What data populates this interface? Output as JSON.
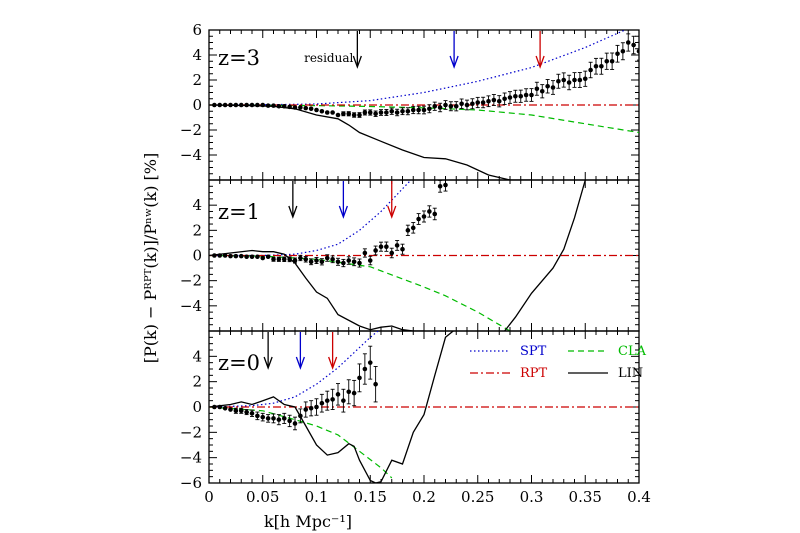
{
  "chart_data": [
    {
      "type": "line",
      "panel_label": "z=3",
      "xlim": [
        0,
        0.4
      ],
      "ylim": [
        -6,
        6
      ],
      "x_ticks": [
        0,
        0.05,
        0.1,
        0.15,
        0.2,
        0.25,
        0.3,
        0.35,
        0.4
      ],
      "y_ticks": [
        -4,
        -2,
        0,
        2,
        4,
        6
      ],
      "y_tick_labels": [
        "−4",
        "−2",
        "0",
        "2",
        "4",
        "6"
      ],
      "arrows": [
        {
          "x": 0.138,
          "color": "#000000",
          "label": "residual"
        },
        {
          "x": 0.228,
          "color": "#0000cc",
          "label": ""
        },
        {
          "x": 0.308,
          "color": "#cc0000",
          "label": ""
        }
      ],
      "series": [
        {
          "key": "SPT",
          "style": "dotted",
          "color": "#0000cc",
          "x": [
            0.0,
            0.05,
            0.1,
            0.15,
            0.2,
            0.25,
            0.3,
            0.35,
            0.4
          ],
          "y": [
            0.0,
            0.02,
            0.08,
            0.35,
            1.0,
            1.9,
            3.0,
            4.6,
            6.5
          ]
        },
        {
          "key": "CLA",
          "style": "dashed",
          "color": "#00bb00",
          "x": [
            0.0,
            0.1,
            0.15,
            0.2,
            0.25,
            0.3,
            0.35,
            0.4
          ],
          "y": [
            0.0,
            -0.05,
            -0.12,
            -0.22,
            -0.4,
            -0.8,
            -1.5,
            -2.2
          ]
        },
        {
          "key": "RPT",
          "style": "dashdot",
          "color": "#cc0000",
          "x": [
            0.0,
            0.4
          ],
          "y": [
            0.0,
            0.0
          ]
        },
        {
          "key": "LIN",
          "style": "solid",
          "color": "#000000",
          "x": [
            0.0,
            0.04,
            0.06,
            0.08,
            0.1,
            0.12,
            0.13,
            0.14,
            0.16,
            0.18,
            0.2,
            0.22,
            0.24,
            0.26,
            0.28,
            0.3
          ],
          "y": [
            0.0,
            -0.05,
            -0.1,
            -0.3,
            -0.8,
            -1.1,
            -1.6,
            -2.2,
            -2.9,
            -3.6,
            -4.2,
            -4.3,
            -4.8,
            -5.6,
            -6.0,
            -6.0
          ]
        },
        {
          "key": "data",
          "style": "points",
          "color": "#000000",
          "x": [
            0.005,
            0.01,
            0.015,
            0.02,
            0.025,
            0.03,
            0.035,
            0.04,
            0.045,
            0.05,
            0.055,
            0.06,
            0.065,
            0.07,
            0.075,
            0.08,
            0.085,
            0.09,
            0.095,
            0.1,
            0.105,
            0.11,
            0.115,
            0.12,
            0.125,
            0.13,
            0.135,
            0.14,
            0.145,
            0.15,
            0.155,
            0.16,
            0.165,
            0.17,
            0.175,
            0.18,
            0.185,
            0.19,
            0.195,
            0.2,
            0.205,
            0.21,
            0.215,
            0.22,
            0.225,
            0.23,
            0.235,
            0.24,
            0.245,
            0.25,
            0.255,
            0.26,
            0.265,
            0.27,
            0.275,
            0.28,
            0.285,
            0.29,
            0.295,
            0.3,
            0.305,
            0.31,
            0.315,
            0.32,
            0.325,
            0.33,
            0.335,
            0.34,
            0.345,
            0.35,
            0.355,
            0.36,
            0.365,
            0.37,
            0.375,
            0.38,
            0.385,
            0.39,
            0.395,
            0.4
          ],
          "y": [
            0.0,
            0.0,
            0.0,
            0.0,
            0.0,
            0.0,
            0.0,
            0.0,
            0.0,
            0.0,
            -0.05,
            -0.05,
            -0.1,
            -0.1,
            -0.15,
            -0.2,
            -0.2,
            -0.25,
            -0.3,
            -0.4,
            -0.5,
            -0.6,
            -0.6,
            -0.8,
            -0.7,
            -0.7,
            -0.8,
            -0.8,
            -0.6,
            -0.6,
            -0.7,
            -0.6,
            -0.6,
            -0.5,
            -0.6,
            -0.5,
            -0.5,
            -0.4,
            -0.4,
            -0.4,
            -0.3,
            -0.1,
            -0.2,
            0.0,
            -0.1,
            -0.1,
            0.1,
            0.0,
            0.1,
            0.2,
            0.2,
            0.3,
            0.4,
            0.3,
            0.5,
            0.6,
            0.7,
            0.7,
            0.8,
            0.8,
            1.3,
            1.1,
            1.5,
            1.4,
            1.9,
            2.0,
            1.8,
            2.0,
            2.0,
            2.1,
            2.8,
            3.1,
            3.1,
            3.5,
            3.5,
            4.1,
            4.3,
            5.0,
            4.8,
            4.3
          ],
          "yerr": [
            0.02,
            0.02,
            0.02,
            0.02,
            0.03,
            0.03,
            0.03,
            0.04,
            0.04,
            0.05,
            0.05,
            0.06,
            0.06,
            0.07,
            0.08,
            0.08,
            0.09,
            0.1,
            0.1,
            0.11,
            0.12,
            0.13,
            0.14,
            0.15,
            0.16,
            0.17,
            0.18,
            0.19,
            0.2,
            0.21,
            0.22,
            0.23,
            0.24,
            0.25,
            0.26,
            0.27,
            0.28,
            0.29,
            0.3,
            0.31,
            0.32,
            0.33,
            0.34,
            0.35,
            0.36,
            0.37,
            0.38,
            0.39,
            0.4,
            0.41,
            0.42,
            0.43,
            0.44,
            0.45,
            0.46,
            0.47,
            0.48,
            0.49,
            0.5,
            0.51,
            0.52,
            0.53,
            0.54,
            0.55,
            0.56,
            0.57,
            0.58,
            0.59,
            0.6,
            0.61,
            0.62,
            0.63,
            0.64,
            0.65,
            0.66,
            0.67,
            0.68,
            0.69,
            0.7,
            0.71
          ]
        }
      ]
    },
    {
      "type": "line",
      "panel_label": "z=1",
      "xlim": [
        0,
        0.4
      ],
      "ylim": [
        -6,
        6
      ],
      "x_ticks": [
        0,
        0.05,
        0.1,
        0.15,
        0.2,
        0.25,
        0.3,
        0.35,
        0.4
      ],
      "y_ticks": [
        -4,
        -2,
        0,
        2,
        4
      ],
      "y_tick_labels": [
        "−4",
        "−2",
        "0",
        "2",
        "4"
      ],
      "arrows": [
        {
          "x": 0.078,
          "color": "#000000",
          "label": ""
        },
        {
          "x": 0.125,
          "color": "#0000cc",
          "label": ""
        },
        {
          "x": 0.17,
          "color": "#cc0000",
          "label": ""
        }
      ],
      "series": [
        {
          "key": "SPT",
          "style": "dotted",
          "color": "#0000cc",
          "x": [
            0.0,
            0.05,
            0.08,
            0.1,
            0.12,
            0.14,
            0.16,
            0.18,
            0.19
          ],
          "y": [
            0.0,
            0.0,
            0.1,
            0.4,
            0.9,
            2.0,
            3.5,
            5.3,
            6.2
          ]
        },
        {
          "key": "CLA",
          "style": "dashed",
          "color": "#00bb00",
          "x": [
            0.0,
            0.05,
            0.1,
            0.15,
            0.2,
            0.22,
            0.25,
            0.27,
            0.28
          ],
          "y": [
            0.0,
            -0.05,
            -0.3,
            -0.9,
            -2.5,
            -3.2,
            -4.5,
            -5.5,
            -6.0
          ]
        },
        {
          "key": "RPT",
          "style": "dashdot",
          "color": "#cc0000",
          "x": [
            0.0,
            0.4
          ],
          "y": [
            0.0,
            0.0
          ]
        },
        {
          "key": "LIN",
          "style": "solid",
          "color": "#000000",
          "x": [
            0.0,
            0.02,
            0.04,
            0.05,
            0.06,
            0.07,
            0.08,
            0.09,
            0.1,
            0.11,
            0.12,
            0.14,
            0.15,
            0.16,
            0.17,
            0.18,
            0.19,
            0.2
          ],
          "y": [
            0.0,
            0.2,
            0.4,
            0.3,
            0.3,
            0.1,
            -0.6,
            -1.8,
            -2.9,
            -3.4,
            -4.7,
            -5.6,
            -5.9,
            -5.7,
            -5.6,
            -5.9,
            -6.0,
            -6.0
          ]
        },
        {
          "key": "LIN_right",
          "style": "solid",
          "color": "#000000",
          "x": [
            0.275,
            0.285,
            0.3,
            0.32,
            0.33,
            0.34,
            0.35
          ],
          "y": [
            -6.0,
            -4.9,
            -3.0,
            -1.0,
            0.5,
            3.0,
            6.0
          ]
        },
        {
          "key": "data",
          "style": "points",
          "color": "#000000",
          "x": [
            0.005,
            0.01,
            0.015,
            0.02,
            0.025,
            0.03,
            0.035,
            0.04,
            0.045,
            0.05,
            0.055,
            0.06,
            0.065,
            0.07,
            0.075,
            0.08,
            0.085,
            0.09,
            0.095,
            0.1,
            0.105,
            0.11,
            0.115,
            0.12,
            0.125,
            0.13,
            0.135,
            0.14,
            0.145,
            0.15,
            0.155,
            0.16,
            0.165,
            0.17,
            0.175,
            0.18,
            0.185,
            0.19,
            0.195,
            0.2,
            0.205,
            0.21,
            0.215,
            0.22
          ],
          "y": [
            0.0,
            0.0,
            0.0,
            -0.05,
            -0.05,
            -0.05,
            -0.1,
            -0.1,
            -0.1,
            -0.2,
            -0.1,
            -0.3,
            -0.3,
            -0.3,
            -0.3,
            -0.4,
            -0.2,
            -0.3,
            -0.5,
            -0.4,
            -0.5,
            -0.2,
            -0.3,
            -0.5,
            -0.6,
            -0.4,
            -0.5,
            -0.6,
            0.2,
            -0.4,
            0.4,
            0.7,
            0.7,
            0.2,
            0.8,
            0.5,
            2.0,
            2.2,
            2.9,
            3.1,
            3.5,
            3.3,
            5.5,
            5.6
          ],
          "yerr": [
            0.05,
            0.06,
            0.07,
            0.08,
            0.09,
            0.1,
            0.11,
            0.12,
            0.13,
            0.14,
            0.15,
            0.16,
            0.17,
            0.18,
            0.19,
            0.2,
            0.21,
            0.22,
            0.23,
            0.24,
            0.25,
            0.26,
            0.27,
            0.28,
            0.29,
            0.3,
            0.31,
            0.32,
            0.33,
            0.34,
            0.35,
            0.36,
            0.37,
            0.38,
            0.39,
            0.4,
            0.41,
            0.42,
            0.43,
            0.44,
            0.45,
            0.46,
            0.47,
            0.48
          ]
        }
      ]
    },
    {
      "type": "line",
      "panel_label": "z=0",
      "xlim": [
        0,
        0.4
      ],
      "ylim": [
        -6,
        6
      ],
      "x_ticks": [
        0,
        0.05,
        0.1,
        0.15,
        0.2,
        0.25,
        0.3,
        0.35,
        0.4
      ],
      "x_tick_labels": [
        "0",
        "0.05",
        "0.1",
        "0.15",
        "0.2",
        "0.25",
        "0.3",
        "0.35",
        "0.4"
      ],
      "y_ticks": [
        -6,
        -4,
        -2,
        0,
        2,
        4
      ],
      "y_tick_labels": [
        "−6",
        "−4",
        "−2",
        "0",
        "2",
        "4"
      ],
      "arrows": [
        {
          "x": 0.055,
          "color": "#000000",
          "label": ""
        },
        {
          "x": 0.085,
          "color": "#0000cc",
          "label": ""
        },
        {
          "x": 0.115,
          "color": "#cc0000",
          "label": ""
        }
      ],
      "series": [
        {
          "key": "SPT",
          "style": "dotted",
          "color": "#0000cc",
          "x": [
            0.0,
            0.04,
            0.06,
            0.08,
            0.1,
            0.12,
            0.14,
            0.15,
            0.16
          ],
          "y": [
            0.0,
            0.1,
            0.3,
            0.8,
            1.8,
            3.1,
            4.7,
            5.5,
            6.2
          ]
        },
        {
          "key": "CLA",
          "style": "dashed",
          "color": "#00bb00",
          "x": [
            0.0,
            0.05,
            0.08,
            0.1,
            0.12,
            0.14,
            0.16,
            0.17
          ],
          "y": [
            0.0,
            -0.3,
            -1.0,
            -1.5,
            -2.2,
            -3.5,
            -4.8,
            -5.6
          ]
        },
        {
          "key": "RPT",
          "style": "dashdot",
          "color": "#cc0000",
          "x": [
            0.0,
            0.4
          ],
          "y": [
            0.0,
            0.0
          ]
        },
        {
          "key": "LIN",
          "style": "solid",
          "color": "#000000",
          "x": [
            0.0,
            0.02,
            0.03,
            0.04,
            0.05,
            0.06,
            0.07,
            0.08,
            0.09,
            0.1,
            0.11,
            0.12,
            0.13,
            0.135,
            0.14,
            0.15,
            0.155,
            0.16,
            0.17,
            0.18,
            0.19,
            0.2,
            0.21,
            0.22,
            0.23
          ],
          "y": [
            0.0,
            0.2,
            0.4,
            0.2,
            0.5,
            0.8,
            0.2,
            0.0,
            -1.5,
            -3.0,
            -3.8,
            -3.6,
            -2.9,
            -3.1,
            -4.2,
            -5.8,
            -6.0,
            -5.9,
            -4.2,
            -4.5,
            -2.0,
            -0.6,
            2.5,
            5.5,
            6.2
          ]
        },
        {
          "key": "data",
          "style": "points",
          "color": "#000000",
          "x": [
            0.005,
            0.01,
            0.015,
            0.02,
            0.025,
            0.03,
            0.035,
            0.04,
            0.045,
            0.05,
            0.055,
            0.06,
            0.065,
            0.07,
            0.075,
            0.08,
            0.085,
            0.09,
            0.095,
            0.1,
            0.105,
            0.11,
            0.115,
            0.12,
            0.125,
            0.13,
            0.135,
            0.14,
            0.145,
            0.15,
            0.155
          ],
          "y": [
            0.0,
            0.0,
            -0.1,
            -0.2,
            -0.3,
            -0.3,
            -0.4,
            -0.5,
            -0.7,
            -0.8,
            -0.9,
            -0.9,
            -1.0,
            -0.9,
            -1.1,
            -1.3,
            -0.7,
            -0.2,
            -0.1,
            0.0,
            0.3,
            0.5,
            0.6,
            1.0,
            0.5,
            1.2,
            1.1,
            2.3,
            3.0,
            3.5,
            1.8
          ],
          "yerr": [
            0.1,
            0.1,
            0.1,
            0.15,
            0.2,
            0.2,
            0.2,
            0.25,
            0.3,
            0.3,
            0.3,
            0.35,
            0.4,
            0.4,
            0.45,
            0.5,
            0.55,
            0.6,
            0.6,
            0.65,
            0.7,
            0.75,
            0.8,
            0.85,
            0.9,
            0.95,
            1.0,
            1.1,
            1.2,
            1.3,
            1.4
          ]
        }
      ]
    }
  ],
  "legend": [
    {
      "key": "SPT",
      "label": "SPT",
      "style": "dotted",
      "color": "#0000cc"
    },
    {
      "key": "CLA",
      "label": "CLA",
      "style": "dashed",
      "color": "#00bb00"
    },
    {
      "key": "RPT",
      "label": "RPT",
      "style": "dashdot",
      "color": "#cc0000"
    },
    {
      "key": "LIN",
      "label": "LIN",
      "style": "solid",
      "color": "#000000"
    }
  ],
  "axes": {
    "xlabel": "k[h Mpc⁻¹]",
    "ylabel": "[P(k) − Pᴿᴾᵀ(k)]/Pⁿʷ(k)  [%]"
  }
}
